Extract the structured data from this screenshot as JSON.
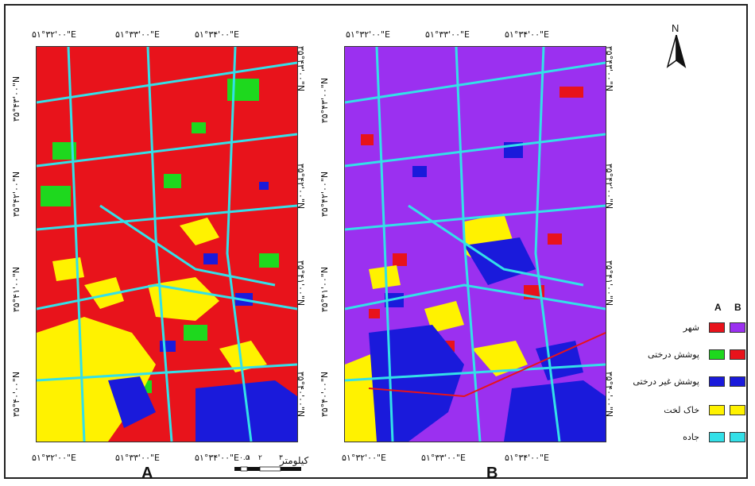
{
  "figure": {
    "panels": [
      {
        "label": "A",
        "top_coords": [
          "۵۱°۳۲'۰۰\"E",
          "۵۱°۳۳'۰۰\"E",
          "۵۱°۳۴'۰۰\"E"
        ],
        "bottom_coords": [
          "۵۱°۳۲'۰۰\"E",
          "۵۱°۳۳'۰۰\"E",
          "۵۱°۳۴'۰۰\"E"
        ],
        "left_coords": [
          "۳۵°۴۳'۰۰\"N",
          "۳۵°۴۲'۰۰\"N",
          "۳۵°۴۱'۰۰\"N",
          "۳۵°۴۰'۰۰\"N"
        ],
        "right_coords": [
          "۳۵°۴۳'۰۰\"N",
          "۳۵°۴۲'۰۰\"N",
          "۳۵°۴۱'۰۰\"N",
          "۳۵°۴۰'۰۰\"N"
        ]
      },
      {
        "label": "B",
        "top_coords": [
          "۵۱°۳۲'۰۰\"E",
          "۵۱°۳۳'۰۰\"E",
          "۵۱°۳۴'۰۰\"E"
        ],
        "bottom_coords": [
          "۵۱°۳۲'۰۰\"E",
          "۵۱°۳۳'۰۰\"E",
          "۵۱°۳۴'۰۰\"E"
        ],
        "left_coords": [
          "۳۵°۴۳'۰۰\"N",
          "۳۵°۴۲'۰۰\"N",
          "۳۵°۴۱'۰۰\"N",
          "۳۵°۴۰'۰۰\"N"
        ],
        "right_coords": [
          "۳۵°۴۳'۰۰\"N",
          "۳۵°۴۲'۰۰\"N",
          "۳۵°۴۱'۰۰\"N",
          "۳۵°۴۰'۰۰\"N"
        ]
      }
    ],
    "north_label": "N",
    "scale": {
      "title": "کیلومتر",
      "ticks": [
        "۰",
        "۰.۵",
        "۱",
        "۲",
        "۳"
      ]
    },
    "legend": {
      "header_a": "A",
      "header_b": "B",
      "items": [
        {
          "label": "شهر",
          "color_a": "#e8131b",
          "color_b": "#9b30f0"
        },
        {
          "label": "پوشش درختی",
          "color_a": "#1ed81e",
          "color_b": "#e8131b"
        },
        {
          "label": "پوشش غیر درختی",
          "color_a": "#1a1adb",
          "color_b": "#1a1adb"
        },
        {
          "label": "خاک لخت",
          "color_a": "#fff200",
          "color_b": "#fff200"
        },
        {
          "label": "جاده",
          "color_a": "#33e0e8",
          "color_b": "#33e0e8"
        }
      ]
    }
  }
}
